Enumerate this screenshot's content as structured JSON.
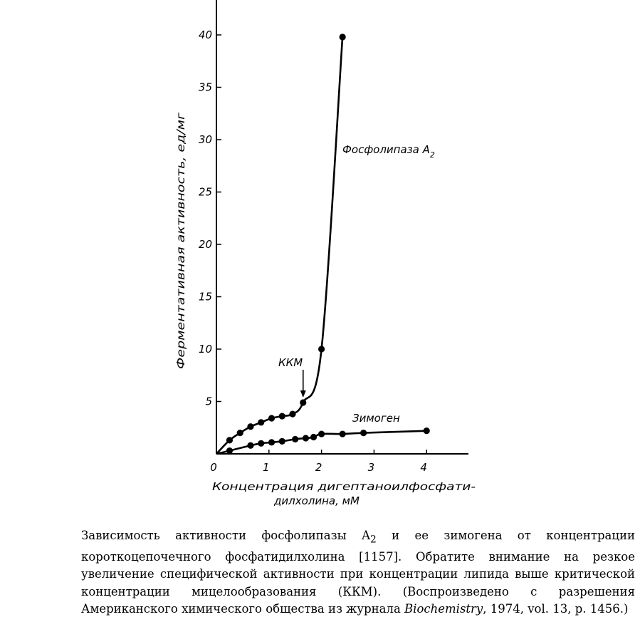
{
  "chart_data": {
    "type": "line",
    "xlabel_line1": "Концентрация дигептаноилфосфати-",
    "xlabel_line2": "дилхолина, мМ",
    "ylabel": "Ферментативная активность, ед/мг",
    "xlim": [
      0,
      4.8
    ],
    "ylim": [
      0,
      43
    ],
    "x_ticks": [
      0,
      1,
      2,
      3,
      4
    ],
    "y_ticks": [
      5,
      10,
      15,
      20,
      25,
      30,
      35,
      40
    ],
    "grid": false,
    "series": [
      {
        "name": "Фосфолипаза A",
        "name_subscript": "2",
        "points": [
          [
            0.25,
            1.3
          ],
          [
            0.45,
            2.0
          ],
          [
            0.65,
            2.6
          ],
          [
            0.85,
            3.0
          ],
          [
            1.05,
            3.4
          ],
          [
            1.25,
            3.6
          ],
          [
            1.45,
            3.8
          ],
          [
            1.65,
            4.9
          ],
          [
            2.0,
            10.0
          ],
          [
            2.4,
            39.8
          ]
        ]
      },
      {
        "name": "Зимоген",
        "points": [
          [
            0.25,
            0.3
          ],
          [
            0.65,
            0.8
          ],
          [
            0.85,
            1.0
          ],
          [
            1.05,
            1.1
          ],
          [
            1.25,
            1.2
          ],
          [
            1.5,
            1.4
          ],
          [
            1.7,
            1.5
          ],
          [
            1.85,
            1.6
          ],
          [
            2.0,
            1.9
          ],
          [
            2.4,
            1.9
          ],
          [
            2.8,
            2.0
          ],
          [
            4.0,
            2.2
          ]
        ]
      }
    ],
    "annotations": [
      {
        "text": "ККМ",
        "x": 1.65,
        "y": 4.9
      }
    ]
  },
  "caption": {
    "part1": "Зависимость активности фосфолипазы A",
    "sub": "2",
    "part2": " и ее зимогена от концентрации короткоцепочечного фосфатидилхолина [1157]. Обратите внимание на резкое увеличение специфической активности при концентрации липида выше критической концентрации мицелообразования (ККМ). (Воспроизведено с разрешения Американского химического общества из журнала ",
    "journal": "Biochemistry",
    "part3": ", 1974, vol. 13, p. 1456.)"
  }
}
